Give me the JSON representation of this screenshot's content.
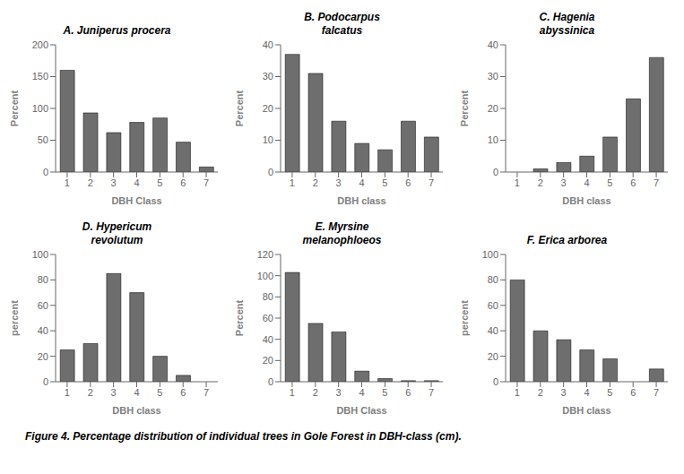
{
  "chart_data": [
    {
      "type": "bar",
      "title": "A. Juniperus procera",
      "xlabel": "DBH Class",
      "ylabel": "Percent",
      "categories": [
        "1",
        "2",
        "3",
        "4",
        "5",
        "6",
        "7"
      ],
      "values": [
        160,
        93,
        62,
        78,
        85,
        47,
        8
      ],
      "color": "#6e6e6e",
      "ylim": [
        0,
        200
      ],
      "yticks": [
        0,
        50,
        100,
        150,
        200
      ]
    },
    {
      "type": "bar",
      "title": "B. Podocarpus\nfalcatus",
      "xlabel": "DBH class",
      "ylabel": "Percent",
      "categories": [
        "1",
        "2",
        "3",
        "4",
        "5",
        "6",
        "7"
      ],
      "values": [
        37,
        31,
        16,
        9,
        7,
        16,
        11
      ],
      "color": "#6e6e6e",
      "ylim": [
        0,
        40
      ],
      "yticks": [
        0,
        10,
        20,
        30,
        40
      ]
    },
    {
      "type": "bar",
      "title": "C. Hagenia\nabyssinica",
      "xlabel": "DBH class",
      "ylabel": "Percent",
      "categories": [
        "1",
        "2",
        "3",
        "4",
        "5",
        "6",
        "7"
      ],
      "values": [
        0,
        1,
        3,
        5,
        11,
        23,
        36
      ],
      "color": "#6e6e6e",
      "ylim": [
        0,
        40
      ],
      "yticks": [
        0,
        10,
        20,
        30,
        40
      ]
    },
    {
      "type": "bar",
      "title": "D. Hypericum\nrevolutum",
      "xlabel": "DBH class",
      "ylabel": "percent",
      "categories": [
        "1",
        "2",
        "3",
        "4",
        "5",
        "6",
        "7"
      ],
      "values": [
        25,
        30,
        85,
        70,
        20,
        5,
        0
      ],
      "color": "#6e6e6e",
      "ylim": [
        0,
        100
      ],
      "yticks": [
        0,
        20,
        40,
        60,
        80,
        100
      ]
    },
    {
      "type": "bar",
      "title": "E. Myrsine\nmelanophloeos",
      "xlabel": "DBH Class",
      "ylabel": "Percent",
      "categories": [
        "1",
        "2",
        "3",
        "4",
        "5",
        "6",
        "7"
      ],
      "values": [
        103,
        55,
        47,
        10,
        3,
        1,
        1
      ],
      "color": "#6e6e6e",
      "ylim": [
        0,
        120
      ],
      "yticks": [
        0,
        20,
        40,
        60,
        80,
        100,
        120
      ]
    },
    {
      "type": "bar",
      "title": "F. Erica arborea",
      "xlabel": "DBH class",
      "ylabel": "percent",
      "categories": [
        "1",
        "2",
        "3",
        "4",
        "5",
        "6",
        "7"
      ],
      "values": [
        80,
        40,
        33,
        25,
        18,
        0,
        10
      ],
      "color": "#6e6e6e",
      "ylim": [
        0,
        100
      ],
      "yticks": [
        0,
        20,
        40,
        60,
        80,
        100
      ]
    }
  ],
  "annotations": [
    "Figure 4. Percentage distribution of individual trees in Gole Forest in DBH-class (cm)."
  ]
}
